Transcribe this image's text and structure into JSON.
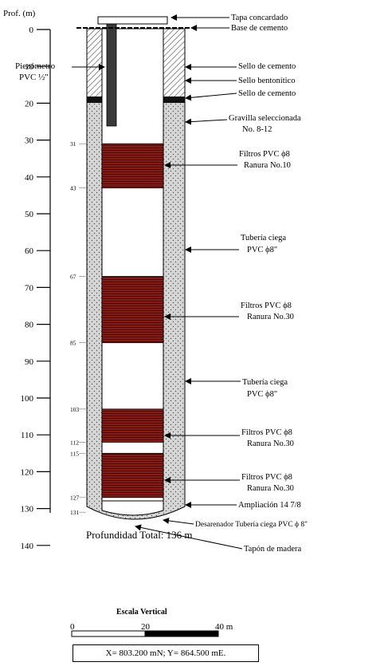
{
  "header": {
    "depth_label": "Prof. (m)"
  },
  "depth_axis": {
    "ticks": [
      0,
      10,
      20,
      30,
      40,
      50,
      60,
      70,
      80,
      90,
      100,
      110,
      120,
      130,
      140
    ]
  },
  "well": {
    "filters": [
      {
        "from": 31,
        "to": 43
      },
      {
        "from": 67,
        "to": 85
      },
      {
        "from": 103,
        "to": 112
      },
      {
        "from": 115,
        "to": 127
      }
    ],
    "depth_marks": [
      "31",
      "43",
      "67",
      "85",
      "103",
      "112",
      "115",
      "127",
      "131"
    ]
  },
  "labels": {
    "tapa": "Tapa concardado",
    "base": "Base de cemento",
    "piezometro_1": "Piezómetro",
    "piezometro_2": "PVC ½\"",
    "sello1": "Sello de cemento",
    "sello_bento": "Sello bentonítico",
    "sello2": "Sello de cemento",
    "gravilla_1": "Gravilla seleccionada",
    "gravilla_2": "No. 8-12",
    "filtro1_1": "Filtros PVC ϕ8",
    "filtro1_2": "Ranura No.10",
    "ciega1_1": "Tubería ciega",
    "ciega1_2": "PVC ϕ8\"",
    "filtro2_1": "Filtros PVC ϕ8",
    "filtro2_2": "Ranura No.30",
    "ciega2_1": "Tubería ciega",
    "ciega2_2": "PVC ϕ8\"",
    "filtro3_1": "Filtros PVC ϕ8",
    "filtro3_2": "Ranura No.30",
    "filtro4_1": "Filtros PVC ϕ8",
    "filtro4_2": "Ranura No.30",
    "ampliacion": "Ampliación 14 7/8",
    "desarenador": "Desarenador Tubería ciega PVC ϕ 8\"",
    "tapon": "Tapón de madera"
  },
  "total_depth": "Profundidad Total: 136 m",
  "scale": {
    "title": "Escala Vertical",
    "labels": [
      "0",
      "20",
      "40 m"
    ]
  },
  "coordinates": "X= 803.200 mN; Y= 864.500 mE."
}
